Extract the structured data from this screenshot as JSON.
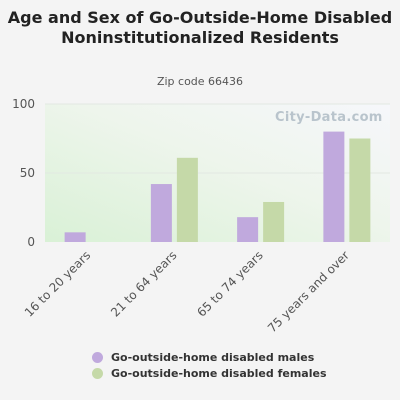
{
  "title": "Age and Sex of Go-Outside-Home Disabled Noninstitutionalized Residents",
  "subtitle": "Zip code 66436",
  "watermark": "City-Data.com",
  "colors": {
    "males": "#c0a9dd",
    "females": "#c5d9a8",
    "axis_text": "#555555"
  },
  "chart_data": {
    "type": "bar",
    "title": "Age and Sex of Go-Outside-Home Disabled Noninstitutionalized Residents",
    "subtitle": "Zip code 66436",
    "categories": [
      "16 to 20 years",
      "21 to 64 years",
      "65 to 74 years",
      "75 years and over"
    ],
    "series": [
      {
        "name": "Go-outside-home disabled males",
        "values": [
          7,
          42,
          18,
          80
        ]
      },
      {
        "name": "Go-outside-home disabled females",
        "values": [
          0,
          61,
          29,
          75
        ]
      }
    ],
    "y_ticks": [
      0,
      50,
      100
    ],
    "ylim": [
      0,
      100
    ],
    "legend_position": "bottom",
    "grid": true
  }
}
